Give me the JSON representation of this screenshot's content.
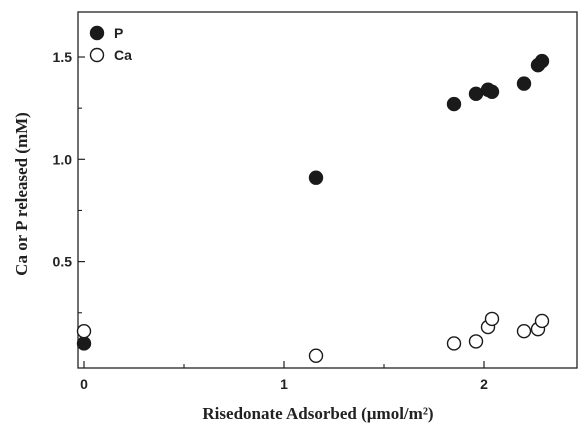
{
  "chart_data": {
    "type": "scatter",
    "title": "",
    "xlabel": "Risedonate Adsorbed (µmol/m²)",
    "ylabel": "Ca or P released (mM)",
    "xlim": [
      -0.03,
      2.47
    ],
    "ylim": [
      -0.02,
      1.72
    ],
    "xticks": [
      0,
      1,
      2
    ],
    "xtick_labels": [
      "0",
      "1",
      "2"
    ],
    "yticks": [
      0.5,
      1.0,
      1.5
    ],
    "ytick_labels": [
      "0.5",
      "1.0",
      "1.5"
    ],
    "grid": false,
    "legend_position": "top-left",
    "series": [
      {
        "name": "P",
        "marker": "filled-circle",
        "color": "#1a1a1a",
        "x": [
          0.0,
          1.16,
          1.85,
          1.96,
          2.02,
          2.04,
          2.2,
          2.27,
          2.29
        ],
        "y": [
          0.1,
          0.91,
          1.27,
          1.32,
          1.34,
          1.33,
          1.37,
          1.46,
          1.48
        ]
      },
      {
        "name": "Ca",
        "marker": "open-circle",
        "color": "#1a1a1a",
        "x": [
          0.0,
          1.16,
          1.85,
          1.96,
          2.02,
          2.04,
          2.2,
          2.27,
          2.29
        ],
        "y": [
          0.16,
          0.04,
          0.1,
          0.11,
          0.18,
          0.22,
          0.16,
          0.17,
          0.21
        ]
      }
    ]
  }
}
